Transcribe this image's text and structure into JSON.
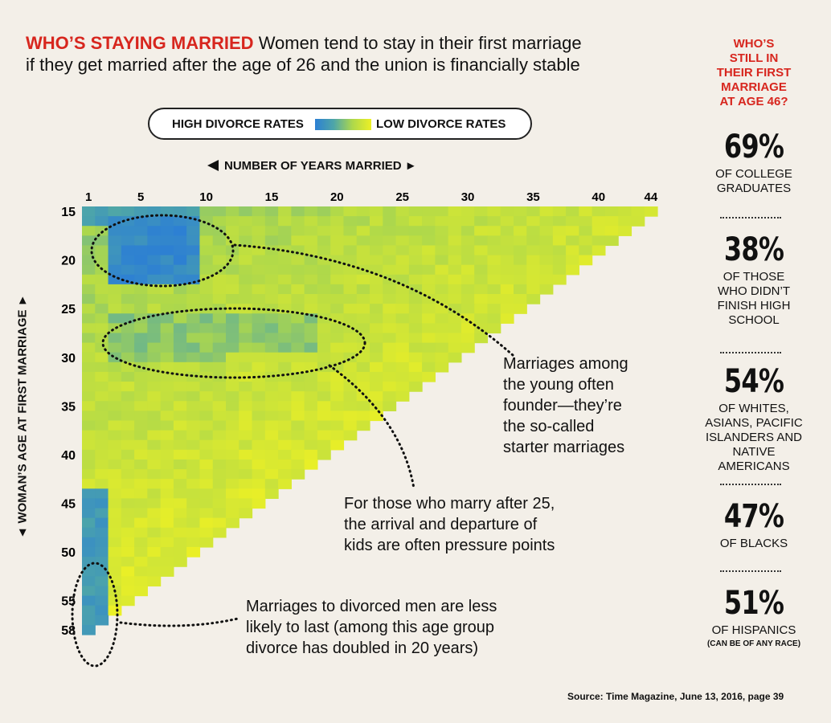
{
  "title": {
    "kicker": "WHO’S STAYING MARRIED",
    "line1": " Women tend to stay in their first marriage",
    "line2": "if they get married after the age of 26 and the union is financially stable"
  },
  "legend": {
    "high": "HIGH DIVORCE RATES",
    "low": "LOW DIVORCE RATES"
  },
  "colors": {
    "high": "#2c7fd4",
    "low": "#ecf025",
    "accent": "#d7261e"
  },
  "chart_data": {
    "type": "heatmap",
    "xlabel": "◄ NUMBER OF YEARS MARRIED ►",
    "ylabel": "◄ WOMAN’S AGE AT FIRST MARRIAGE ►",
    "x_range": [
      1,
      44
    ],
    "y_range": [
      15,
      58
    ],
    "x_ticks": [
      1,
      5,
      10,
      15,
      20,
      25,
      30,
      35,
      40,
      44
    ],
    "y_ticks": [
      15,
      20,
      25,
      30,
      35,
      40,
      45,
      50,
      55,
      58
    ],
    "scale": "divorce rate (0 = low, 1 = high)",
    "high_divorce_regions": [
      {
        "age": [
          16,
          22
        ],
        "years": [
          3,
          9
        ],
        "level": 0.9
      },
      {
        "age": [
          15,
          16
        ],
        "years": [
          1,
          9
        ],
        "level": 0.7
      },
      {
        "age": [
          44,
          58
        ],
        "years": [
          1,
          2
        ],
        "level": 0.75
      },
      {
        "age": [
          26,
          30
        ],
        "years": [
          3,
          18
        ],
        "level": 0.45
      }
    ],
    "low_divorce_regions": [
      {
        "age": [
          30,
          58
        ],
        "years": [
          10,
          44
        ],
        "level": 0.05
      }
    ]
  },
  "annotations": {
    "starter": [
      "Marriages among",
      "the young often",
      "founder—they’re",
      "the so-called",
      "starter marriages"
    ],
    "kids": [
      "For those who marry after 25,",
      "the arrival and departure of",
      "kids are often pressure points"
    ],
    "divorced": [
      "Marriages to divorced men are less",
      "likely to last (among this age group",
      "divorce has doubled in 20 years)"
    ]
  },
  "side": {
    "question": [
      "WHO’S",
      "STILL IN",
      "THEIR FIRST",
      "MARRIAGE",
      "AT AGE 46?"
    ],
    "stats": [
      {
        "pct": "69%",
        "label": [
          "OF COLLEGE",
          "GRADUATES"
        ],
        "sub": ""
      },
      {
        "pct": "38%",
        "label": [
          "OF THOSE",
          "WHO DIDN’T",
          "FINISH HIGH",
          "SCHOOL"
        ],
        "sub": ""
      },
      {
        "pct": "54%",
        "label": [
          "OF WHITES,",
          "ASIANS, PACIFIC",
          "ISLANDERS AND",
          "NATIVE AMERICANS"
        ],
        "sub": ""
      },
      {
        "pct": "47%",
        "label": [
          "OF BLACKS"
        ],
        "sub": ""
      },
      {
        "pct": "51%",
        "label": [
          "OF HISPANICS"
        ],
        "sub": "(CAN BE OF ANY RACE)"
      }
    ]
  },
  "source": "Source: Time Magazine, June 13, 2016, page 39"
}
